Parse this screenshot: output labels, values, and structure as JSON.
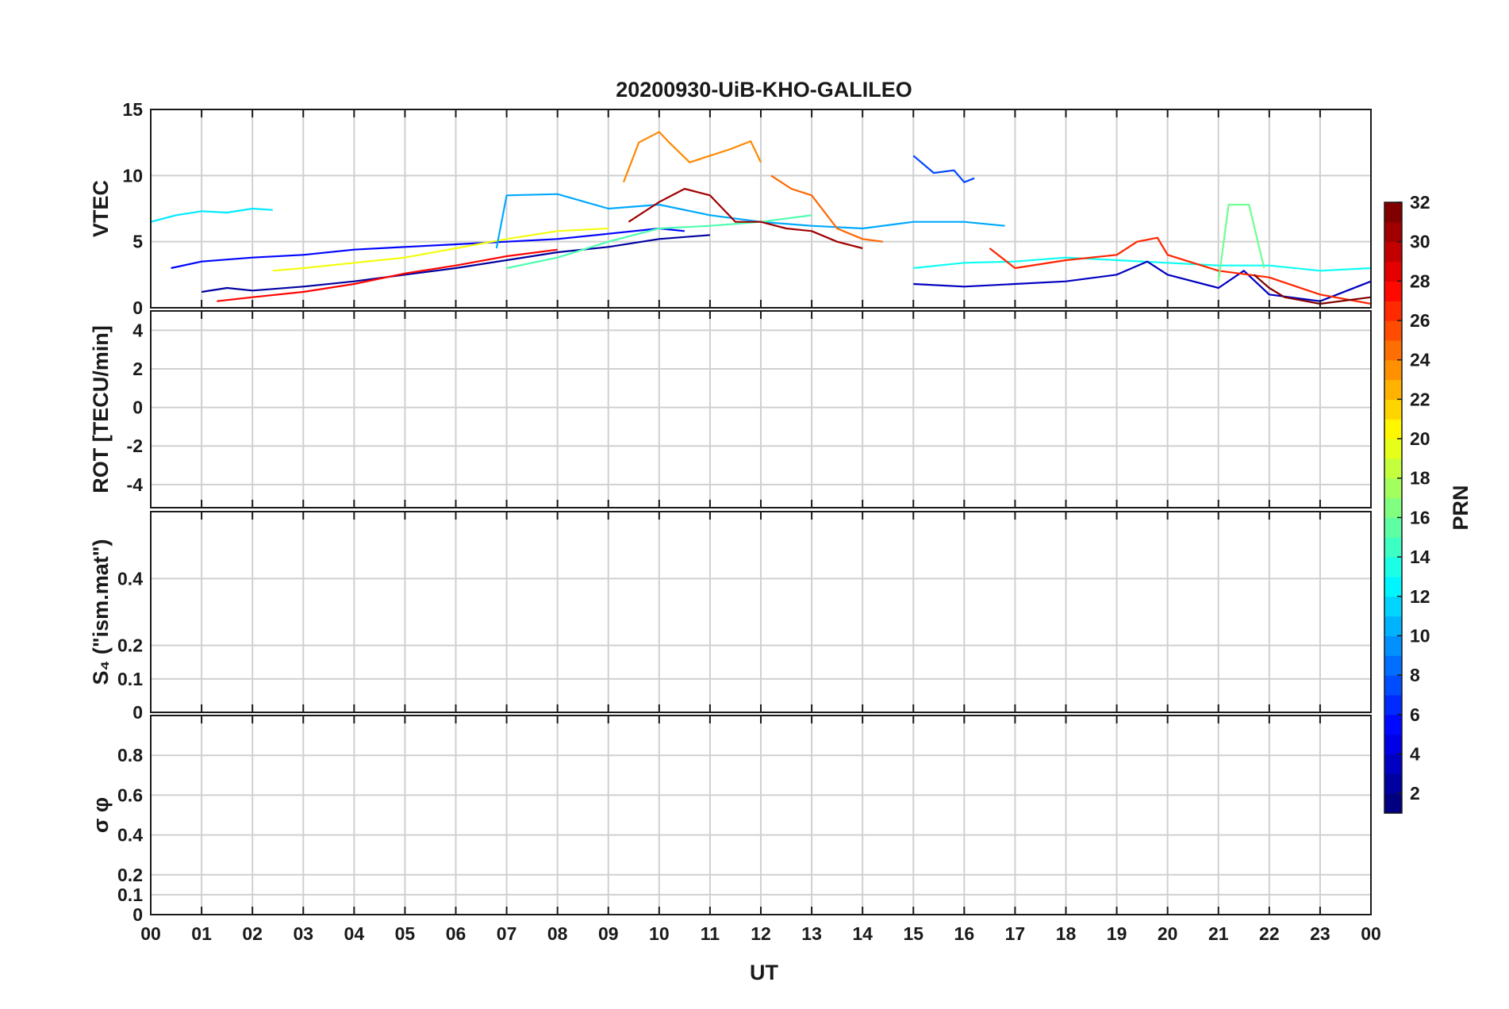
{
  "chart_data": {
    "type": "line",
    "title": "20200930-UiB-KHO-GALILEO",
    "xlabel": "UT",
    "x_ticks": [
      "00",
      "01",
      "02",
      "03",
      "04",
      "05",
      "06",
      "07",
      "08",
      "09",
      "10",
      "11",
      "12",
      "13",
      "14",
      "15",
      "16",
      "17",
      "18",
      "19",
      "20",
      "21",
      "22",
      "23",
      "00"
    ],
    "xlim": [
      0,
      24
    ],
    "grid": true,
    "colormap": "jet",
    "colorbar": {
      "label": "PRN",
      "range": [
        1,
        32
      ],
      "ticks": [
        "2",
        "4",
        "6",
        "8",
        "10",
        "12",
        "14",
        "16",
        "18",
        "20",
        "22",
        "24",
        "26",
        "28",
        "30",
        "32"
      ]
    },
    "panels": [
      {
        "ylabel": "VTEC",
        "ylim": [
          0,
          15
        ],
        "y_ticks": [
          "0",
          "5",
          "10",
          "15"
        ],
        "series": [
          {
            "prn": 12,
            "x": [
              0,
              0.5,
              1,
              1.5,
              2,
              2.4
            ],
            "y": [
              6.5,
              7,
              7.3,
              7.2,
              7.5,
              7.4
            ]
          },
          {
            "prn": 5,
            "x": [
              0.4,
              1,
              2,
              3,
              4,
              5,
              6,
              7,
              8,
              9,
              10,
              10.5
            ],
            "y": [
              3,
              3.5,
              3.8,
              4,
              4.4,
              4.6,
              4.8,
              5,
              5.2,
              5.6,
              6,
              5.8
            ]
          },
          {
            "prn": 2,
            "x": [
              1,
              1.5,
              2,
              3,
              4,
              5,
              6,
              7,
              8,
              9,
              10,
              11
            ],
            "y": [
              1.2,
              1.5,
              1.3,
              1.6,
              2,
              2.5,
              3,
              3.6,
              4.2,
              4.6,
              5.2,
              5.5
            ]
          },
          {
            "prn": 28,
            "x": [
              1.3,
              2,
              3,
              4,
              5,
              6,
              7,
              8
            ],
            "y": [
              0.5,
              0.8,
              1.2,
              1.8,
              2.6,
              3.2,
              3.9,
              4.4
            ]
          },
          {
            "prn": 20,
            "x": [
              2.4,
              3,
              4,
              5,
              6,
              7,
              8,
              9
            ],
            "y": [
              2.8,
              3,
              3.4,
              3.8,
              4.5,
              5.2,
              5.8,
              6
            ]
          },
          {
            "prn": 10,
            "x": [
              6.8,
              7,
              8,
              9,
              10,
              11,
              12,
              13,
              14,
              15,
              16,
              16.8
            ],
            "y": [
              4.5,
              8.5,
              8.6,
              7.5,
              7.8,
              7,
              6.5,
              6.2,
              6,
              6.5,
              6.5,
              6.2
            ]
          },
          {
            "prn": 15,
            "x": [
              7,
              8,
              9,
              10,
              11,
              12,
              13
            ],
            "y": [
              3,
              3.8,
              5,
              6,
              6.2,
              6.5,
              7
            ]
          },
          {
            "prn": 24,
            "x": [
              9.3,
              9.6,
              10,
              10.2,
              10.6,
              11,
              11.4,
              11.8,
              12
            ],
            "y": [
              9.5,
              12.5,
              13.3,
              12.5,
              11,
              11.5,
              12,
              12.6,
              11
            ]
          },
          {
            "prn": 25,
            "x": [
              12.2,
              12.6,
              13,
              13.5,
              14,
              14.4
            ],
            "y": [
              10,
              9,
              8.5,
              6,
              5.2,
              5
            ]
          },
          {
            "prn": 31,
            "x": [
              9.4,
              10,
              10.5,
              11,
              11.5,
              12,
              12.5,
              13,
              13.5,
              14
            ],
            "y": [
              6.5,
              8,
              9,
              8.5,
              6.5,
              6.5,
              6,
              5.8,
              5,
              4.5
            ]
          },
          {
            "prn": 7,
            "x": [
              15,
              15.4,
              15.8,
              16,
              16.2
            ],
            "y": [
              11.5,
              10.2,
              10.4,
              9.5,
              9.8
            ]
          },
          {
            "prn": 13,
            "x": [
              15,
              16,
              17,
              18,
              19,
              20,
              21,
              22,
              23,
              24
            ],
            "y": [
              3,
              3.4,
              3.5,
              3.8,
              3.6,
              3.4,
              3.2,
              3.2,
              2.8,
              3
            ]
          },
          {
            "prn": 3,
            "x": [
              15,
              16,
              17,
              18,
              19,
              19.6,
              20,
              21,
              21.5,
              22,
              23,
              24
            ],
            "y": [
              1.8,
              1.6,
              1.8,
              2,
              2.5,
              3.5,
              2.5,
              1.5,
              2.8,
              1,
              0.5,
              2
            ]
          },
          {
            "prn": 27,
            "x": [
              16.5,
              17,
              18,
              19,
              19.4,
              19.8,
              20,
              21,
              22,
              23,
              24
            ],
            "y": [
              4.5,
              3,
              3.6,
              4,
              5,
              5.3,
              4,
              2.8,
              2.3,
              1,
              0.3
            ]
          },
          {
            "prn": 16,
            "x": [
              21,
              21.2,
              21.6,
              21.9
            ],
            "y": [
              2,
              7.8,
              7.8,
              3
            ]
          },
          {
            "prn": 32,
            "x": [
              21.7,
              22,
              22.3,
              23,
              24
            ],
            "y": [
              2.5,
              1.5,
              0.8,
              0.3,
              0.8
            ]
          }
        ]
      },
      {
        "ylabel": "ROT [TECU/min]",
        "ylim": [
          -5.2,
          5
        ],
        "y_ticks": [
          "-4",
          "-2",
          "0",
          "2",
          "4"
        ]
      },
      {
        "ylabel": "S₄ (\"ism.mat\")",
        "ylim": [
          0,
          0.6
        ],
        "y_ticks": [
          "0",
          "0.1",
          "0.2",
          "0.4"
        ]
      },
      {
        "ylabel": "σ φ",
        "ylim": [
          0,
          1
        ],
        "y_ticks": [
          "0",
          "0.1",
          "0.2",
          "0.4",
          "0.6",
          "0.8"
        ]
      }
    ]
  }
}
